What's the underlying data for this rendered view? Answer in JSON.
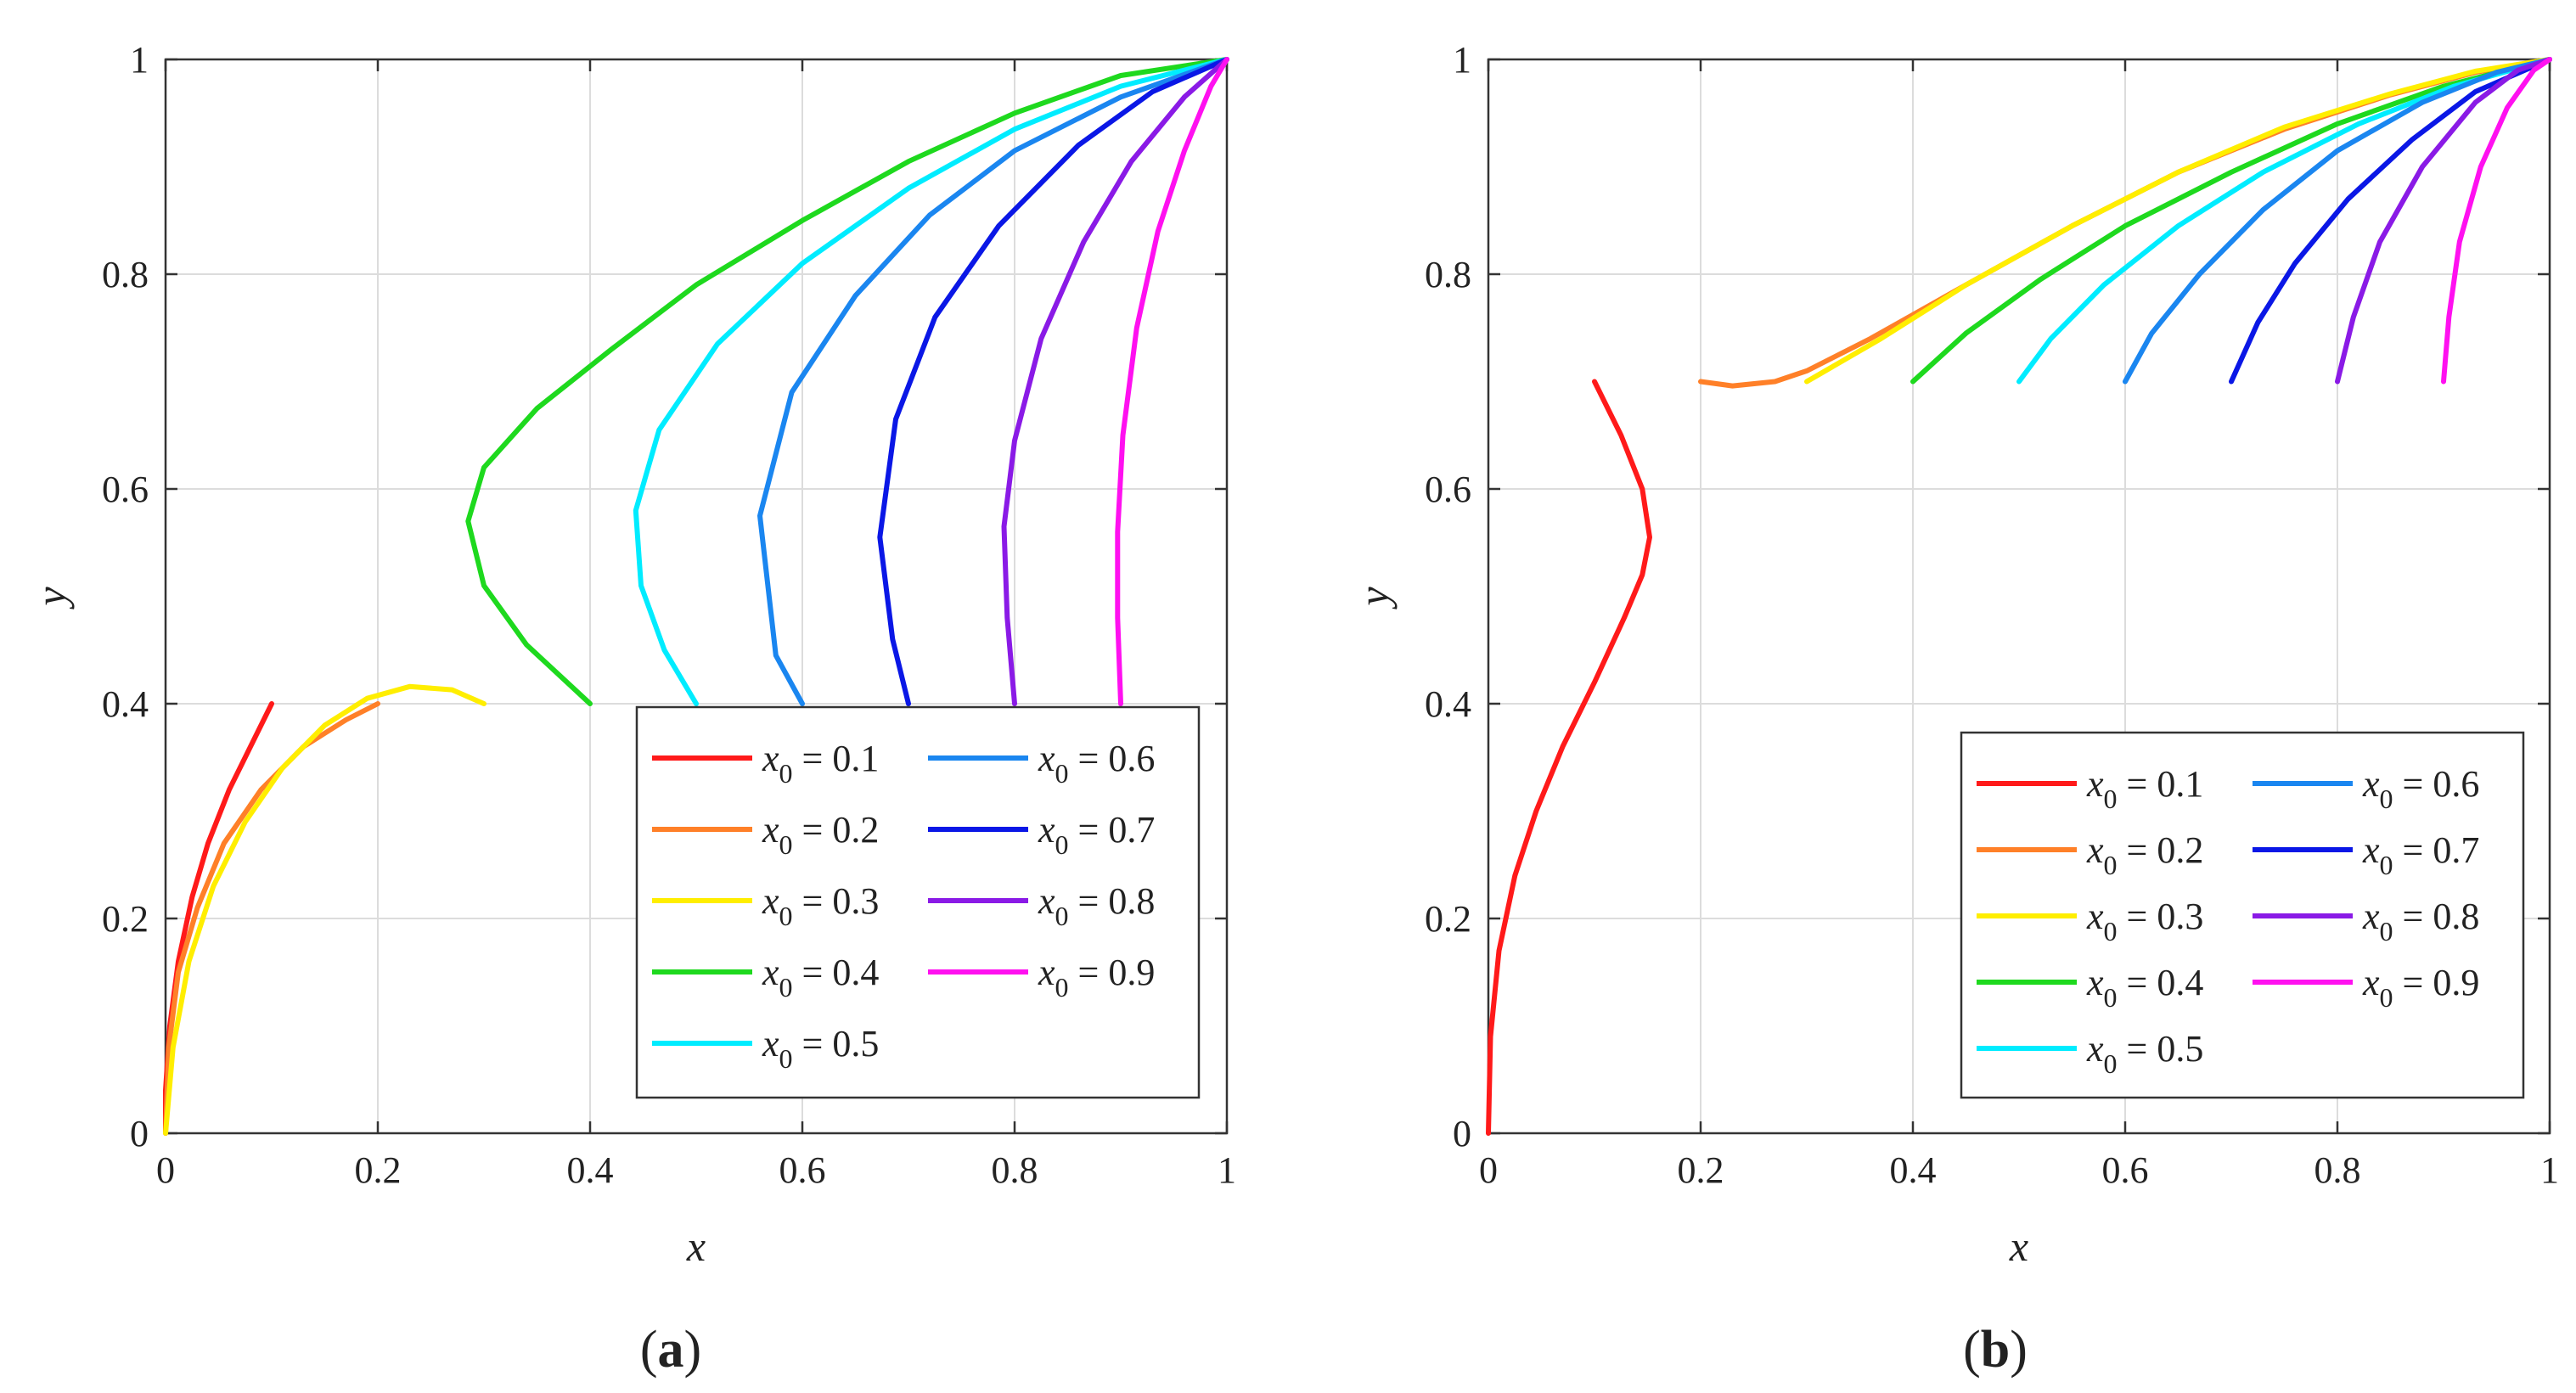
{
  "chart_data": [
    {
      "type": "line",
      "id": "a",
      "panel_label": "a",
      "xlabel": "x",
      "ylabel": "y",
      "xlim": [
        0,
        1
      ],
      "ylim": [
        0,
        1
      ],
      "x_ticks": [
        0,
        0.2,
        0.4,
        0.6,
        0.8,
        1
      ],
      "y_ticks": [
        0,
        0.2,
        0.4,
        0.6,
        0.8,
        1
      ],
      "x_tick_labels": [
        "0",
        "0.2",
        "0.4",
        "0.6",
        "0.8",
        "1"
      ],
      "y_tick_labels": [
        "0",
        "0.2",
        "0.4",
        "0.6",
        "0.8",
        "1"
      ],
      "grid": true,
      "legend_position": "bottom-right",
      "series": [
        {
          "name": "x0 = 0.1",
          "var": "x",
          "sub": "0",
          "val": " = 0.1",
          "color": "#ff1a1a",
          "points": [
            [
              0.1,
              0.4
            ],
            [
              0.08,
              0.36
            ],
            [
              0.06,
              0.32
            ],
            [
              0.04,
              0.27
            ],
            [
              0.025,
              0.22
            ],
            [
              0.012,
              0.16
            ],
            [
              0.004,
              0.1
            ],
            [
              0,
              0.04
            ],
            [
              0,
              0
            ]
          ]
        },
        {
          "name": "x0 = 0.2",
          "var": "x",
          "sub": "0",
          "val": " = 0.2",
          "color": "#ff8028",
          "points": [
            [
              0.2,
              0.4
            ],
            [
              0.17,
              0.385
            ],
            [
              0.13,
              0.36
            ],
            [
              0.09,
              0.32
            ],
            [
              0.055,
              0.27
            ],
            [
              0.03,
              0.21
            ],
            [
              0.012,
              0.15
            ],
            [
              0.003,
              0.08
            ],
            [
              0,
              0
            ]
          ]
        },
        {
          "name": "x0 = 0.3",
          "var": "x",
          "sub": "0",
          "val": " = 0.3",
          "color": "#ffee00",
          "points": [
            [
              0.3,
              0.4
            ],
            [
              0.27,
              0.413
            ],
            [
              0.23,
              0.416
            ],
            [
              0.19,
              0.405
            ],
            [
              0.15,
              0.38
            ],
            [
              0.11,
              0.34
            ],
            [
              0.075,
              0.29
            ],
            [
              0.045,
              0.23
            ],
            [
              0.022,
              0.16
            ],
            [
              0.007,
              0.08
            ],
            [
              0,
              0
            ]
          ]
        },
        {
          "name": "x0 = 0.4",
          "var": "x",
          "sub": "0",
          "val": " = 0.4",
          "color": "#1ed91e",
          "points": [
            [
              0.4,
              0.4
            ],
            [
              0.34,
              0.455
            ],
            [
              0.3,
              0.51
            ],
            [
              0.285,
              0.57
            ],
            [
              0.3,
              0.62
            ],
            [
              0.35,
              0.675
            ],
            [
              0.42,
              0.73
            ],
            [
              0.5,
              0.79
            ],
            [
              0.6,
              0.85
            ],
            [
              0.7,
              0.905
            ],
            [
              0.8,
              0.95
            ],
            [
              0.9,
              0.985
            ],
            [
              1,
              1
            ]
          ]
        },
        {
          "name": "x0 = 0.5",
          "var": "x",
          "sub": "0",
          "val": " = 0.5",
          "color": "#00ecff",
          "points": [
            [
              0.5,
              0.4
            ],
            [
              0.47,
              0.45
            ],
            [
              0.448,
              0.51
            ],
            [
              0.443,
              0.58
            ],
            [
              0.465,
              0.655
            ],
            [
              0.52,
              0.735
            ],
            [
              0.6,
              0.81
            ],
            [
              0.7,
              0.88
            ],
            [
              0.8,
              0.935
            ],
            [
              0.9,
              0.975
            ],
            [
              1,
              1
            ]
          ]
        },
        {
          "name": "x0 = 0.6",
          "var": "x",
          "sub": "0",
          "val": " = 0.6",
          "color": "#1a86f0",
          "points": [
            [
              0.6,
              0.4
            ],
            [
              0.575,
              0.445
            ],
            [
              0.56,
              0.575
            ],
            [
              0.59,
              0.69
            ],
            [
              0.65,
              0.78
            ],
            [
              0.72,
              0.855
            ],
            [
              0.8,
              0.915
            ],
            [
              0.9,
              0.965
            ],
            [
              1,
              1
            ]
          ]
        },
        {
          "name": "x0 = 0.7",
          "var": "x",
          "sub": "0",
          "val": " = 0.7",
          "color": "#0a17e6",
          "points": [
            [
              0.7,
              0.4
            ],
            [
              0.685,
              0.46
            ],
            [
              0.673,
              0.555
            ],
            [
              0.688,
              0.665
            ],
            [
              0.725,
              0.76
            ],
            [
              0.785,
              0.845
            ],
            [
              0.86,
              0.92
            ],
            [
              0.93,
              0.97
            ],
            [
              1,
              1
            ]
          ]
        },
        {
          "name": "x0 = 0.8",
          "var": "x",
          "sub": "0",
          "val": " = 0.8",
          "color": "#8a1ae6",
          "points": [
            [
              0.8,
              0.4
            ],
            [
              0.793,
              0.48
            ],
            [
              0.79,
              0.565
            ],
            [
              0.8,
              0.645
            ],
            [
              0.825,
              0.74
            ],
            [
              0.865,
              0.83
            ],
            [
              0.91,
              0.905
            ],
            [
              0.96,
              0.965
            ],
            [
              1,
              1
            ]
          ]
        },
        {
          "name": "x0 = 0.9",
          "var": "x",
          "sub": "0",
          "val": " = 0.9",
          "color": "#ff10f0",
          "points": [
            [
              0.9,
              0.4
            ],
            [
              0.897,
              0.48
            ],
            [
              0.897,
              0.56
            ],
            [
              0.902,
              0.65
            ],
            [
              0.915,
              0.75
            ],
            [
              0.935,
              0.84
            ],
            [
              0.96,
              0.915
            ],
            [
              0.985,
              0.975
            ],
            [
              1,
              1
            ]
          ]
        }
      ]
    },
    {
      "type": "line",
      "id": "b",
      "panel_label": "b",
      "xlabel": "x",
      "ylabel": "y",
      "xlim": [
        0,
        1
      ],
      "ylim": [
        0,
        1
      ],
      "x_ticks": [
        0,
        0.2,
        0.4,
        0.6,
        0.8,
        1
      ],
      "y_ticks": [
        0,
        0.2,
        0.4,
        0.6,
        0.8,
        1
      ],
      "x_tick_labels": [
        "0",
        "0.2",
        "0.4",
        "0.6",
        "0.8",
        "1"
      ],
      "y_tick_labels": [
        "0",
        "0.2",
        "0.4",
        "0.6",
        "0.8",
        "1"
      ],
      "grid": true,
      "legend_position": "bottom-right",
      "series": [
        {
          "name": "x0 = 0.1",
          "var": "x",
          "sub": "0",
          "val": " = 0.1",
          "color": "#ff1a1a",
          "points": [
            [
              0.1,
              0.7
            ],
            [
              0.125,
              0.65
            ],
            [
              0.145,
              0.6
            ],
            [
              0.152,
              0.555
            ],
            [
              0.145,
              0.52
            ],
            [
              0.128,
              0.48
            ],
            [
              0.1,
              0.42
            ],
            [
              0.07,
              0.36
            ],
            [
              0.045,
              0.3
            ],
            [
              0.025,
              0.24
            ],
            [
              0.01,
              0.17
            ],
            [
              0.002,
              0.09
            ],
            [
              0,
              0
            ]
          ]
        },
        {
          "name": "x0 = 0.2",
          "var": "x",
          "sub": "0",
          "val": " = 0.2",
          "color": "#ff8028",
          "points": [
            [
              0.2,
              0.7
            ],
            [
              0.23,
              0.696
            ],
            [
              0.27,
              0.7
            ],
            [
              0.3,
              0.71
            ],
            [
              0.36,
              0.74
            ],
            [
              0.45,
              0.79
            ],
            [
              0.55,
              0.845
            ],
            [
              0.65,
              0.895
            ],
            [
              0.75,
              0.935
            ],
            [
              0.85,
              0.967
            ],
            [
              0.93,
              0.988
            ],
            [
              1,
              1
            ]
          ]
        },
        {
          "name": "x0 = 0.3",
          "var": "x",
          "sub": "0",
          "val": " = 0.3",
          "color": "#ffee00",
          "points": [
            [
              0.3,
              0.7
            ],
            [
              0.37,
              0.74
            ],
            [
              0.45,
              0.79
            ],
            [
              0.55,
              0.845
            ],
            [
              0.65,
              0.895
            ],
            [
              0.75,
              0.937
            ],
            [
              0.85,
              0.968
            ],
            [
              0.93,
              0.989
            ],
            [
              1,
              1
            ]
          ]
        },
        {
          "name": "x0 = 0.4",
          "var": "x",
          "sub": "0",
          "val": " = 0.4",
          "color": "#1ed91e",
          "points": [
            [
              0.4,
              0.7
            ],
            [
              0.45,
              0.745
            ],
            [
              0.52,
              0.795
            ],
            [
              0.6,
              0.845
            ],
            [
              0.7,
              0.895
            ],
            [
              0.8,
              0.94
            ],
            [
              0.9,
              0.975
            ],
            [
              1,
              1
            ]
          ]
        },
        {
          "name": "x0 = 0.5",
          "var": "x",
          "sub": "0",
          "val": " = 0.5",
          "color": "#00ecff",
          "points": [
            [
              0.5,
              0.7
            ],
            [
              0.53,
              0.74
            ],
            [
              0.58,
              0.79
            ],
            [
              0.65,
              0.845
            ],
            [
              0.73,
              0.895
            ],
            [
              0.82,
              0.94
            ],
            [
              0.91,
              0.975
            ],
            [
              1,
              1
            ]
          ]
        },
        {
          "name": "x0 = 0.6",
          "var": "x",
          "sub": "0",
          "val": " = 0.6",
          "color": "#1a86f0",
          "points": [
            [
              0.6,
              0.7
            ],
            [
              0.625,
              0.745
            ],
            [
              0.67,
              0.8
            ],
            [
              0.73,
              0.86
            ],
            [
              0.8,
              0.915
            ],
            [
              0.88,
              0.96
            ],
            [
              0.95,
              0.988
            ],
            [
              1,
              1
            ]
          ]
        },
        {
          "name": "x0 = 0.7",
          "var": "x",
          "sub": "0",
          "val": " = 0.7",
          "color": "#0a17e6",
          "points": [
            [
              0.7,
              0.7
            ],
            [
              0.725,
              0.755
            ],
            [
              0.76,
              0.81
            ],
            [
              0.81,
              0.87
            ],
            [
              0.87,
              0.925
            ],
            [
              0.93,
              0.97
            ],
            [
              1,
              1
            ]
          ]
        },
        {
          "name": "x0 = 0.8",
          "var": "x",
          "sub": "0",
          "val": " = 0.8",
          "color": "#8a1ae6",
          "points": [
            [
              0.8,
              0.7
            ],
            [
              0.815,
              0.76
            ],
            [
              0.84,
              0.83
            ],
            [
              0.88,
              0.9
            ],
            [
              0.93,
              0.96
            ],
            [
              0.97,
              0.99
            ],
            [
              1,
              1
            ]
          ]
        },
        {
          "name": "x0 = 0.9",
          "var": "x",
          "sub": "0",
          "val": " = 0.9",
          "color": "#ff10f0",
          "points": [
            [
              0.9,
              0.7
            ],
            [
              0.905,
              0.76
            ],
            [
              0.915,
              0.83
            ],
            [
              0.935,
              0.9
            ],
            [
              0.96,
              0.955
            ],
            [
              0.985,
              0.99
            ],
            [
              1,
              1
            ]
          ]
        }
      ]
    }
  ]
}
